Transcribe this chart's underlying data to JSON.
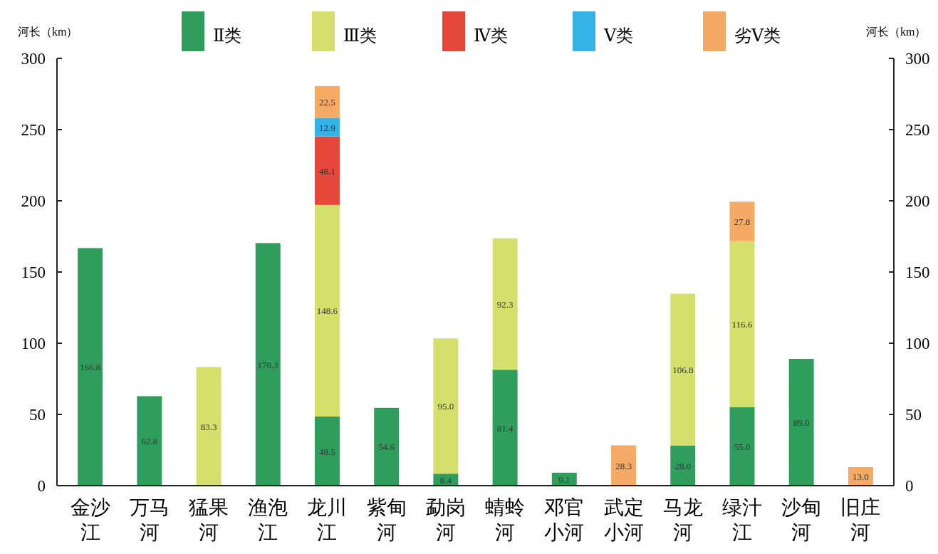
{
  "chart_data": {
    "type": "bar",
    "stacked": true,
    "ylabel": "河长（km）",
    "y2label": "河长（km）",
    "categories": [
      "金沙江",
      "万马河",
      "猛果河",
      "渔泡江",
      "龙川江",
      "紫甸河",
      "勐岗河",
      "蜻蛉河",
      "邓官小河",
      "武定小河",
      "马龙河",
      "绿汁江",
      "沙甸河",
      "旧庄河"
    ],
    "series": [
      {
        "name": "Ⅱ类",
        "color": "#2f9e5c",
        "values": [
          166.8,
          62.8,
          null,
          170.3,
          48.5,
          54.6,
          8.4,
          81.4,
          9.1,
          null,
          28.0,
          55.0,
          89.0,
          null
        ],
        "value_labels": [
          "166.8",
          "62.8",
          null,
          "170.3",
          "48.5",
          "54.6",
          "8.4",
          "81.4",
          "9.1",
          null,
          "28.0",
          "55.0",
          "89.0",
          null
        ]
      },
      {
        "name": "Ⅲ类",
        "color": "#d5e06c",
        "values": [
          null,
          null,
          83.3,
          null,
          148.6,
          null,
          95.0,
          92.3,
          null,
          null,
          106.8,
          116.6,
          null,
          null
        ],
        "value_labels": [
          null,
          null,
          "83.3",
          null,
          "148.6",
          null,
          "95.0",
          "92.3",
          null,
          null,
          "106.8",
          "116.6",
          null,
          null
        ]
      },
      {
        "name": "Ⅳ类",
        "color": "#e5473b",
        "values": [
          null,
          null,
          null,
          null,
          48.1,
          null,
          null,
          null,
          null,
          null,
          null,
          null,
          null,
          null
        ],
        "value_labels": [
          null,
          null,
          null,
          null,
          "48.1",
          null,
          null,
          null,
          null,
          null,
          null,
          null,
          null,
          null
        ]
      },
      {
        "name": "Ⅴ类",
        "color": "#34b3e6",
        "values": [
          null,
          null,
          null,
          null,
          12.9,
          null,
          null,
          null,
          null,
          null,
          null,
          null,
          null,
          null
        ],
        "value_labels": [
          null,
          null,
          null,
          null,
          "12.9",
          null,
          null,
          null,
          null,
          null,
          null,
          null,
          null,
          null
        ]
      },
      {
        "name": "劣Ⅴ类",
        "color": "#f5aa66",
        "values": [
          null,
          null,
          null,
          null,
          22.5,
          null,
          null,
          null,
          null,
          28.3,
          null,
          27.8,
          null,
          13.0
        ],
        "value_labels": [
          null,
          null,
          null,
          null,
          "22.5",
          null,
          null,
          null,
          null,
          "28.3",
          null,
          "27.8",
          null,
          "13.0"
        ]
      }
    ],
    "ylim": [
      0,
      300
    ],
    "yticks": [
      0,
      50,
      100,
      150,
      200,
      250,
      300
    ],
    "y2lim": [
      0,
      300
    ],
    "y2ticks": [
      0,
      50,
      100,
      150,
      200,
      250,
      300
    ],
    "grid": false,
    "legend": "top"
  }
}
